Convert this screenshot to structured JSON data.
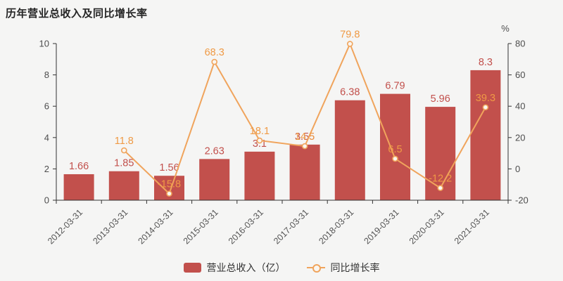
{
  "title": "历年营业总收入及同比增长率",
  "legend": {
    "bar_label": "营业总收入（亿）",
    "line_label": "同比增长率"
  },
  "colors": {
    "bar": "#c2504c",
    "bar_label": "#c2504c",
    "line": "#f0a45c",
    "line_label": "#ef9a45",
    "axis_line": "#333333",
    "axis_text": "#4d4d4d",
    "background": "#f5f5f4"
  },
  "chart_data": {
    "type": "bar",
    "title": "历年营业总收入及同比增长率",
    "categories": [
      "2012-03-31",
      "2013-03-31",
      "2014-03-31",
      "2015-03-31",
      "2016-03-31",
      "2017-03-31",
      "2018-03-31",
      "2019-03-31",
      "2020-03-31",
      "2021-03-31"
    ],
    "series": [
      {
        "name": "营业总收入（亿）",
        "type": "bar",
        "axis": "left",
        "values": [
          1.66,
          1.85,
          1.56,
          2.63,
          3.1,
          3.55,
          6.38,
          6.79,
          5.96,
          8.3
        ]
      },
      {
        "name": "同比增长率",
        "type": "line",
        "axis": "right",
        "values": [
          null,
          11.8,
          -15.8,
          68.3,
          18.1,
          14.5,
          79.8,
          6.5,
          -12.2,
          39.3
        ]
      }
    ],
    "left_axis": {
      "min": 0,
      "max": 10,
      "ticks": [
        0,
        2,
        4,
        6,
        8,
        10
      ]
    },
    "right_axis": {
      "min": -20,
      "max": 80,
      "ticks": [
        -20,
        0,
        20,
        40,
        60,
        80
      ],
      "unit": "%"
    },
    "grid": false,
    "legend_position": "bottom",
    "xlabel": "",
    "ylabel": ""
  }
}
